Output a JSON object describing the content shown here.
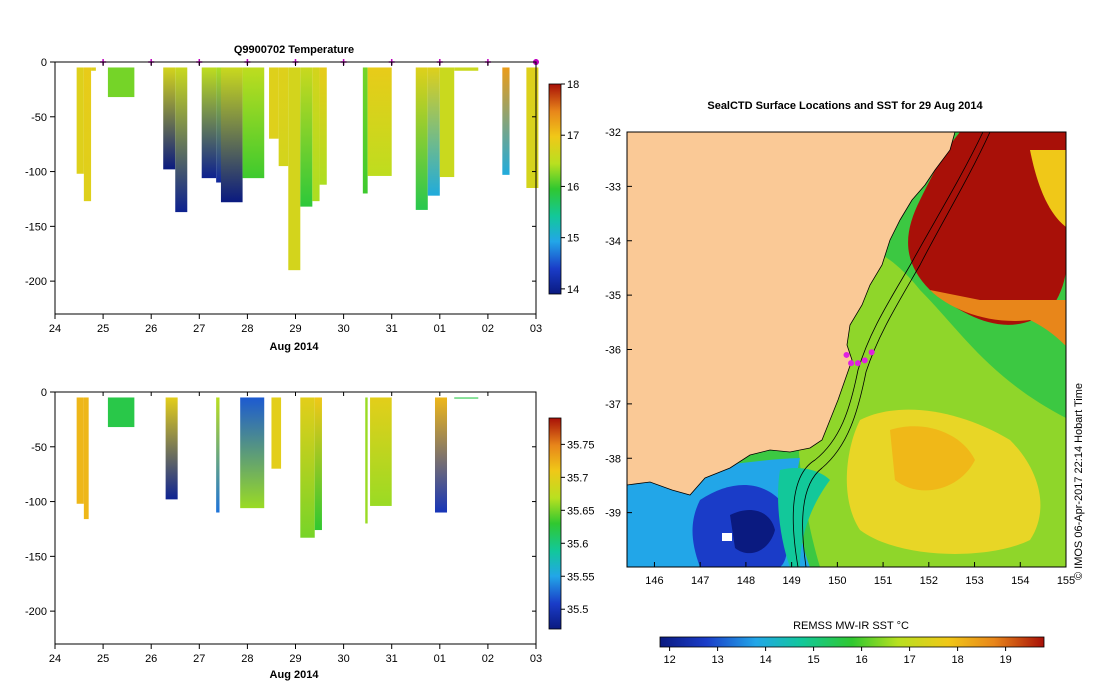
{
  "chart_data": [
    {
      "type": "heatmap",
      "title": "Q9900702  Temperature",
      "xlabel": "Aug 2014",
      "ylabel": "",
      "xticks": [
        "24",
        "25",
        "26",
        "27",
        "28",
        "29",
        "30",
        "31",
        "01",
        "02",
        "03"
      ],
      "xlim": [
        24,
        34
      ],
      "ylim": [
        -230,
        0
      ],
      "yticks": [
        0,
        -50,
        -100,
        -150,
        -200
      ],
      "colorbar": {
        "ticks": [
          18,
          17,
          16,
          15,
          14
        ],
        "range": [
          13.9,
          18
        ]
      },
      "profile_markers": [
        25.0,
        26.0,
        27.0,
        28.0,
        29.0,
        30.0,
        31.0,
        32.0,
        33.0,
        34.0
      ],
      "profiles": [
        {
          "x0": 24.45,
          "x1": 24.6,
          "depth": 102,
          "top": 16.8,
          "bottom": 16.8
        },
        {
          "x0": 24.6,
          "x1": 24.75,
          "depth": 127,
          "top": 16.9,
          "bottom": 16.8
        },
        {
          "x0": 24.75,
          "x1": 24.85,
          "depth": 8,
          "top": 16.8,
          "bottom": 16.8
        },
        {
          "x0": 25.1,
          "x1": 25.65,
          "depth": 32,
          "top": 16.2,
          "bottom": 16.2
        },
        {
          "x0": 26.25,
          "x1": 26.5,
          "depth": 98,
          "top": 16.7,
          "bottom": 13.9
        },
        {
          "x0": 26.5,
          "x1": 26.75,
          "depth": 137,
          "top": 16.6,
          "bottom": 14.0
        },
        {
          "x0": 27.05,
          "x1": 27.35,
          "depth": 106,
          "top": 16.5,
          "bottom": 14.0
        },
        {
          "x0": 27.35,
          "x1": 27.5,
          "depth": 110,
          "top": 16.4,
          "bottom": 14.1
        },
        {
          "x0": 27.45,
          "x1": 27.9,
          "depth": 128,
          "top": 16.6,
          "bottom": 13.9
        },
        {
          "x0": 27.9,
          "x1": 28.35,
          "depth": 106,
          "top": 16.5,
          "bottom": 16.0
        },
        {
          "x0": 28.45,
          "x1": 28.65,
          "depth": 70,
          "top": 16.8,
          "bottom": 16.8
        },
        {
          "x0": 28.65,
          "x1": 28.85,
          "depth": 95,
          "top": 16.8,
          "bottom": 16.7
        },
        {
          "x0": 28.85,
          "x1": 29.1,
          "depth": 190,
          "top": 16.7,
          "bottom": 16.7
        },
        {
          "x0": 29.1,
          "x1": 29.35,
          "depth": 132,
          "top": 16.6,
          "bottom": 15.9
        },
        {
          "x0": 29.35,
          "x1": 29.5,
          "depth": 127,
          "top": 16.7,
          "bottom": 16.4
        },
        {
          "x0": 29.5,
          "x1": 29.65,
          "depth": 112,
          "top": 16.9,
          "bottom": 16.4
        },
        {
          "x0": 30.4,
          "x1": 30.5,
          "depth": 120,
          "top": 16.2,
          "bottom": 16.0
        },
        {
          "x0": 30.5,
          "x1": 31.0,
          "depth": 104,
          "top": 16.9,
          "bottom": 16.5
        },
        {
          "x0": 31.5,
          "x1": 31.75,
          "depth": 135,
          "top": 16.8,
          "bottom": 15.8
        },
        {
          "x0": 31.75,
          "x1": 32.0,
          "depth": 122,
          "top": 16.8,
          "bottom": 15.0
        },
        {
          "x0": 32.0,
          "x1": 32.3,
          "depth": 105,
          "top": 16.6,
          "bottom": 16.6
        },
        {
          "x0": 32.3,
          "x1": 32.8,
          "depth": 8,
          "top": 16.6,
          "bottom": 16.6
        },
        {
          "x0": 33.3,
          "x1": 33.45,
          "depth": 103,
          "top": 17.3,
          "bottom": 15.0
        },
        {
          "x0": 33.8,
          "x1": 34.05,
          "depth": 115,
          "top": 16.8,
          "bottom": 16.7
        }
      ]
    },
    {
      "type": "heatmap",
      "title": "",
      "xlabel": "Aug 2014",
      "ylabel": "",
      "xticks": [
        "24",
        "25",
        "26",
        "27",
        "28",
        "29",
        "30",
        "31",
        "01",
        "02",
        "03"
      ],
      "xlim": [
        24,
        34
      ],
      "ylim": [
        -230,
        0
      ],
      "yticks": [
        0,
        -50,
        -100,
        -150,
        -200
      ],
      "colorbar": {
        "ticks": [
          35.75,
          35.7,
          35.65,
          35.6,
          35.55,
          35.5
        ],
        "range": [
          35.47,
          35.79
        ]
      },
      "profiles": [
        {
          "x0": 24.45,
          "x1": 24.6,
          "depth": 102,
          "top": 35.72,
          "bottom": 35.72
        },
        {
          "x0": 24.6,
          "x1": 24.7,
          "depth": 116,
          "top": 35.72,
          "bottom": 35.72
        },
        {
          "x0": 25.1,
          "x1": 25.65,
          "depth": 32,
          "top": 35.62,
          "bottom": 35.62
        },
        {
          "x0": 26.3,
          "x1": 26.55,
          "depth": 98,
          "top": 35.7,
          "bottom": 35.48
        },
        {
          "x0": 27.35,
          "x1": 27.42,
          "depth": 110,
          "top": 35.67,
          "bottom": 35.53
        },
        {
          "x0": 27.85,
          "x1": 28.35,
          "depth": 106,
          "top": 35.52,
          "bottom": 35.66
        },
        {
          "x0": 28.5,
          "x1": 28.7,
          "depth": 70,
          "top": 35.7,
          "bottom": 35.7
        },
        {
          "x0": 29.1,
          "x1": 29.4,
          "depth": 133,
          "top": 35.7,
          "bottom": 35.65
        },
        {
          "x0": 29.4,
          "x1": 29.55,
          "depth": 126,
          "top": 35.71,
          "bottom": 35.63
        },
        {
          "x0": 30.45,
          "x1": 30.5,
          "depth": 120,
          "top": 35.66,
          "bottom": 35.66
        },
        {
          "x0": 30.55,
          "x1": 31.0,
          "depth": 104,
          "top": 35.7,
          "bottom": 35.66
        },
        {
          "x0": 31.9,
          "x1": 32.15,
          "depth": 110,
          "top": 35.72,
          "bottom": 35.5
        },
        {
          "x0": 32.3,
          "x1": 32.8,
          "depth": 6,
          "top": 35.62,
          "bottom": 35.62
        }
      ]
    },
    {
      "type": "heatmap",
      "title": "SealCTD Surface Locations and SST for 29 Aug 2014",
      "xlabel": "",
      "ylabel": "",
      "xticks": [
        "146",
        "147",
        "148",
        "149",
        "150",
        "151",
        "152",
        "153",
        "154",
        "155"
      ],
      "yticks": [
        "-32",
        "-33",
        "-34",
        "-35",
        "-36",
        "-37",
        "-38",
        "-39"
      ],
      "xlim": [
        145.4,
        155
      ],
      "ylim": [
        -40,
        -32
      ],
      "colorbar": {
        "label": "REMSS MW-IR SST °C",
        "ticks": [
          "12",
          "13",
          "14",
          "15",
          "16",
          "17",
          "18",
          "19"
        ],
        "range": [
          11.8,
          19.8
        ]
      },
      "side_note": "© IMOS 06-Apr-2017 22:14 Hobart Time",
      "seal_locations": [
        [
          150.2,
          -36.1
        ],
        [
          150.3,
          -36.25
        ],
        [
          150.45,
          -36.25
        ],
        [
          150.6,
          -36.2
        ],
        [
          150.75,
          -36.05
        ]
      ]
    }
  ]
}
